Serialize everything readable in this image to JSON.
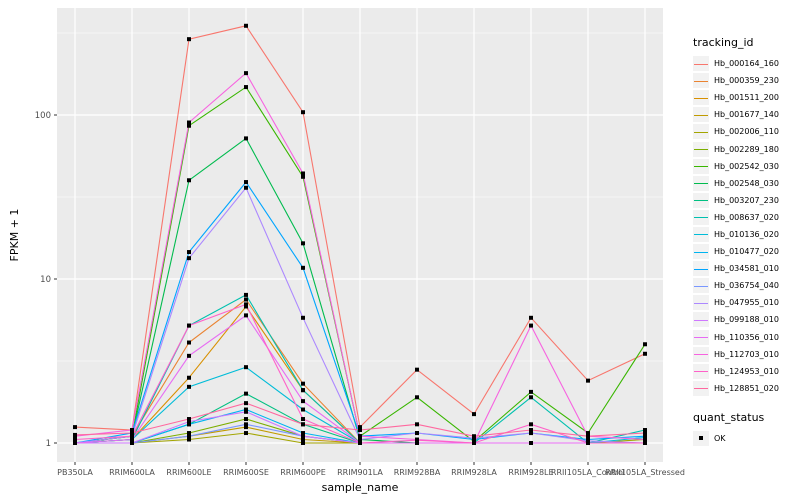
{
  "chart_data": {
    "type": "line",
    "title": "",
    "xlabel": "sample_name",
    "ylabel": "FPKM + 1",
    "y_scale": "log10",
    "y_ticks": [
      1,
      10,
      100
    ],
    "y_minor": [
      3.162,
      31.62,
      316.2
    ],
    "ylim_log": [
      -0.12,
      2.66
    ],
    "grid": "on",
    "panel_fill": "#EBEBEB",
    "gridline_color": "#FFFFFF",
    "point_shape": "filled-square",
    "point_color": "#000000",
    "legend_position": "right",
    "categories": [
      "PB350LA",
      "RRIM600LA",
      "RRIM600LE",
      "RRIM600SE",
      "RRIM600PE",
      "RRIM901LA",
      "RRIM928BA",
      "RRIM928LA",
      "RRIM928LE",
      "RRII105LA_Control",
      "RRII105LA_Stressed"
    ],
    "series": [
      {
        "name": "Hb_000164_160",
        "color": "#F8766D",
        "values": [
          1.25,
          1.2,
          290,
          350,
          104,
          1.25,
          2.8,
          1.5,
          5.8,
          2.4,
          3.5
        ]
      },
      {
        "name": "Hb_000359_230",
        "color": "#EA8331",
        "values": [
          1,
          1.1,
          4.1,
          7.5,
          2.3,
          1,
          1,
          1,
          1,
          1,
          1
        ]
      },
      {
        "name": "Hb_001511_200",
        "color": "#D89000",
        "values": [
          1,
          1.05,
          2.5,
          6.8,
          2.1,
          1,
          1,
          1,
          1,
          1,
          1
        ]
      },
      {
        "name": "Hb_001677_140",
        "color": "#C09B00",
        "values": [
          1,
          1,
          1.1,
          1.25,
          1.05,
          1,
          1,
          1,
          1,
          1,
          1
        ]
      },
      {
        "name": "Hb_002006_110",
        "color": "#A3A500",
        "values": [
          1,
          1,
          1.05,
          1.15,
          1,
          1,
          1,
          1,
          1,
          1,
          1.05
        ]
      },
      {
        "name": "Hb_002289_180",
        "color": "#7CAE00",
        "values": [
          1,
          1,
          1.15,
          1.4,
          1.1,
          1,
          1,
          1,
          1,
          1,
          1
        ]
      },
      {
        "name": "Hb_002542_030",
        "color": "#39B600",
        "values": [
          1,
          1.1,
          86,
          148,
          42,
          1.1,
          1.9,
          1.02,
          2.05,
          1.15,
          4.0
        ]
      },
      {
        "name": "Hb_002548_030",
        "color": "#00BB4E",
        "values": [
          1,
          1.1,
          40,
          72,
          16.5,
          1.05,
          1,
          1,
          1,
          1,
          1
        ]
      },
      {
        "name": "Hb_003207_230",
        "color": "#00C081",
        "values": [
          1,
          1,
          1.3,
          2.0,
          1.3,
          1,
          1,
          1,
          1,
          1,
          1
        ]
      },
      {
        "name": "Hb_008637_020",
        "color": "#00C0AF",
        "values": [
          1,
          1.05,
          5.2,
          8.0,
          2.1,
          1,
          1,
          1,
          1.9,
          1,
          1.2
        ]
      },
      {
        "name": "Hb_010136_020",
        "color": "#00BCD8",
        "values": [
          1,
          1.05,
          2.2,
          2.9,
          1.6,
          1,
          1,
          1,
          1,
          1,
          1.08
        ]
      },
      {
        "name": "Hb_010477_020",
        "color": "#00B4F0",
        "values": [
          1,
          1,
          1.3,
          1.6,
          1.15,
          1,
          1,
          1,
          1,
          1,
          1
        ]
      },
      {
        "name": "Hb_034581_010",
        "color": "#00A5FF",
        "values": [
          1,
          1.15,
          14.6,
          39,
          11.7,
          1.1,
          1.15,
          1.05,
          1.15,
          1.05,
          1.1
        ]
      },
      {
        "name": "Hb_036754_040",
        "color": "#7997FF",
        "values": [
          1,
          1,
          1.1,
          1.3,
          1.1,
          1,
          1,
          1,
          1,
          1,
          1
        ]
      },
      {
        "name": "Hb_047955_010",
        "color": "#AC88FF",
        "values": [
          1,
          1.1,
          13.4,
          36,
          5.8,
          1.05,
          1.15,
          1.07,
          1.15,
          1.03,
          1
        ]
      },
      {
        "name": "Hb_099188_010",
        "color": "#CF78FF",
        "values": [
          1,
          1,
          1.35,
          1.55,
          1.1,
          1,
          1,
          1,
          1,
          1,
          1
        ]
      },
      {
        "name": "Hb_110356_010",
        "color": "#E76BF3",
        "values": [
          1,
          1.05,
          3.4,
          6.0,
          1.8,
          1,
          1,
          1,
          1,
          1,
          1
        ]
      },
      {
        "name": "Hb_112703_010",
        "color": "#F763E0",
        "values": [
          1.1,
          1.2,
          90,
          180,
          44,
          1.1,
          1.05,
          1,
          5.2,
          1.1,
          1.05
        ]
      },
      {
        "name": "Hb_124953_010",
        "color": "#FF61C9",
        "values": [
          1.05,
          1.1,
          5.2,
          7.0,
          1.4,
          1,
          1.04,
          1,
          1.3,
          1,
          1
        ]
      },
      {
        "name": "Hb_128851_020",
        "color": "#FF689F",
        "values": [
          1.12,
          1.15,
          1.4,
          1.75,
          1.3,
          1.2,
          1.3,
          1.1,
          1.2,
          1.1,
          1.15
        ]
      }
    ]
  },
  "legend": {
    "tracking_title": "tracking_id",
    "quant_title": "quant_status",
    "quant_ok_label": "OK"
  },
  "axes": {
    "y_title": "FPKM + 1",
    "x_title": "sample_name",
    "y_tick_labels": [
      "100",
      "10",
      "1"
    ],
    "tick_label_color": "#4D4D4D"
  }
}
